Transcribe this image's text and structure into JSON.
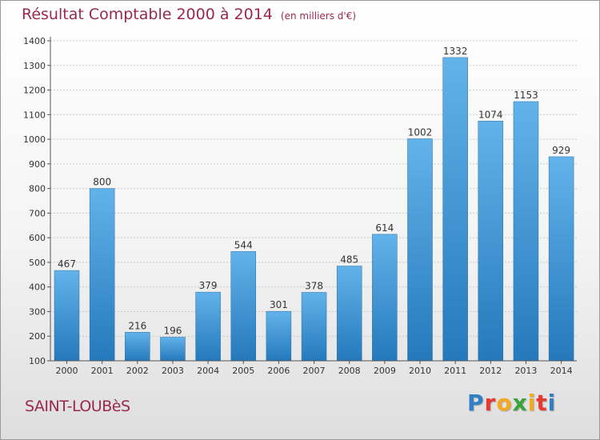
{
  "header": {
    "title": "Résultat Comptable 2000 à 2014",
    "subtitle": "(en milliers d'€)"
  },
  "footer": {
    "location": "SAINT-LOUBèS",
    "brand": "Proxiti",
    "brand_colors": [
      "#2e7fc6",
      "#e63b2e",
      "#f5a91e",
      "#3aa33a",
      "#f5a91e",
      "#e63b2e",
      "#2e7fc6"
    ]
  },
  "colors": {
    "bar_light": "#62b3ea",
    "bar_dark": "#2579bb",
    "axis": "#555555",
    "grid": "#c8c8c8",
    "title": "#9a2850"
  },
  "chart_data": {
    "type": "bar",
    "title": "Résultat Comptable 2000 à 2014",
    "subtitle": "(en milliers d'€)",
    "categories": [
      "2000",
      "2001",
      "2002",
      "2003",
      "2004",
      "2005",
      "2006",
      "2007",
      "2008",
      "2009",
      "2010",
      "2011",
      "2012",
      "2013",
      "2014"
    ],
    "values": [
      467,
      800,
      216,
      196,
      379,
      544,
      301,
      378,
      485,
      614,
      1002,
      1332,
      1074,
      1153,
      929
    ],
    "ylim": [
      100,
      1400
    ],
    "yticks": [
      100,
      200,
      300,
      400,
      500,
      600,
      700,
      800,
      900,
      1000,
      1100,
      1200,
      1300,
      1400
    ],
    "grid": true,
    "data_labels": true
  }
}
